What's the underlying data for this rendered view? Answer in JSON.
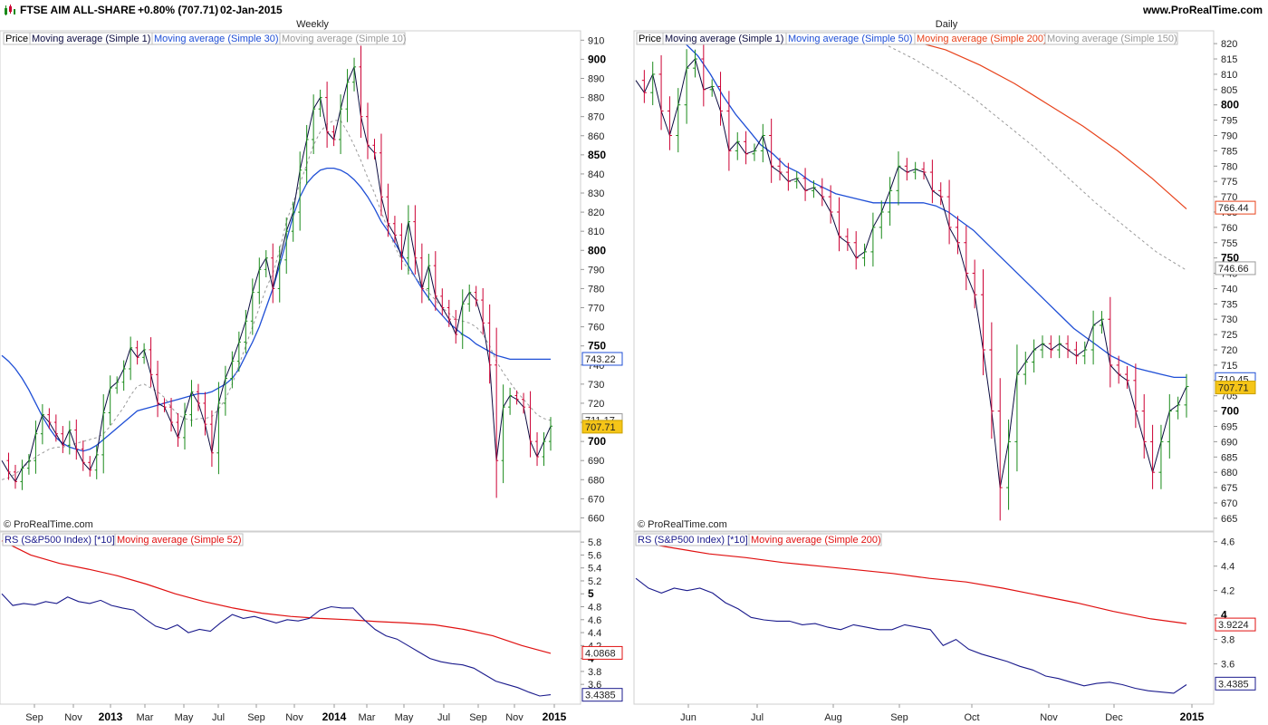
{
  "header": {
    "instrument": "FTSE AIM ALL-SHARE",
    "change": "+0.80% (707.71)",
    "date": "02-Jan-2015",
    "site": "www.ProRealTime.com"
  },
  "colors": {
    "up": "#1a8a1a",
    "down": "#cc0033",
    "close_line": "#0b0b40",
    "ma_blue": "#1f4fd6",
    "ma_gray": "#9a9a9a",
    "ma_red": "#e8431c",
    "rs_blue": "#1a1a8c",
    "rs_red": "#e01010",
    "price_tag": "#f5c518"
  },
  "chart_data": [
    {
      "id": "weekly_price",
      "type": "line",
      "title": "Weekly",
      "copyright": "© ProRealTime.com",
      "legend": [
        "Price",
        "Moving average (Simple 1)",
        "Moving average (Simple 30)",
        "Moving average (Simple 10)"
      ],
      "ylim": [
        655,
        913
      ],
      "y_ticks": [
        660,
        670,
        680,
        690,
        700,
        710,
        720,
        730,
        740,
        750,
        760,
        770,
        780,
        790,
        800,
        810,
        820,
        830,
        840,
        850,
        860,
        870,
        880,
        890,
        900,
        910
      ],
      "y_bold_ticks": [
        700,
        750,
        800,
        850,
        900
      ],
      "x_labels": [
        "Sep",
        "Nov",
        "2013",
        "Mar",
        "May",
        "Jul",
        "Sep",
        "Nov",
        "2014",
        "Mar",
        "May",
        "Jul",
        "Sep",
        "Nov",
        "2015"
      ],
      "x_bold_labels": [
        "2013",
        "2014",
        "2015"
      ],
      "close": [
        690,
        684,
        679,
        686,
        690,
        704,
        714,
        710,
        704,
        698,
        706,
        696,
        689,
        685,
        693,
        715,
        728,
        731,
        738,
        749,
        744,
        748,
        735,
        720,
        718,
        710,
        702,
        714,
        726,
        720,
        709,
        694,
        720,
        733,
        742,
        752,
        763,
        778,
        790,
        796,
        780,
        795,
        810,
        820,
        842,
        858,
        874,
        880,
        862,
        858,
        874,
        888,
        896,
        870,
        855,
        851,
        828,
        814,
        808,
        796,
        815,
        796,
        780,
        792,
        776,
        770,
        764,
        756,
        772,
        778,
        774,
        762,
        740,
        690,
        718,
        724,
        722,
        718,
        700,
        692,
        700,
        708
      ],
      "series": [
        {
          "name": "Moving average (Simple 30)",
          "values": [
            745,
            742,
            738,
            733,
            727,
            720,
            713,
            707,
            702,
            699,
            697,
            696,
            695,
            696,
            698,
            701,
            704,
            707,
            710,
            713,
            716,
            717,
            718,
            719,
            720,
            721,
            722,
            723,
            724,
            725,
            725,
            726,
            728,
            730,
            733,
            738,
            745,
            752,
            760,
            770,
            780,
            792,
            805,
            818,
            828,
            835,
            839,
            842,
            843,
            843,
            842,
            840,
            837,
            833,
            828,
            822,
            815,
            810,
            804,
            798,
            792,
            786,
            780,
            775,
            770,
            766,
            762,
            759,
            756,
            754,
            751,
            749,
            747,
            745,
            744,
            743,
            743,
            743,
            743,
            743,
            743,
            743
          ]
        },
        {
          "name": "Moving average (Simple 10)",
          "values": [
            680,
            681,
            683,
            686,
            689,
            692,
            694,
            696,
            697,
            697,
            698,
            699,
            700,
            701,
            702,
            704,
            708,
            713,
            718,
            724,
            729,
            730,
            728,
            726,
            723,
            718,
            714,
            712,
            711,
            712,
            712,
            713,
            717,
            722,
            730,
            740,
            750,
            760,
            770,
            780,
            788,
            800,
            815,
            825,
            835,
            845,
            855,
            862,
            866,
            868,
            868,
            862,
            855,
            847,
            838,
            830,
            820,
            811,
            802,
            795,
            790,
            786,
            782,
            778,
            774,
            770,
            767,
            764,
            763,
            762,
            760,
            756,
            750,
            742,
            736,
            731,
            726,
            722,
            718,
            714,
            712,
            711
          ]
        }
      ]
    },
    {
      "id": "daily_price",
      "type": "line",
      "title": "Daily",
      "copyright": "© ProRealTime.com",
      "legend": [
        "Price",
        "Moving average (Simple 1)",
        "Moving average (Simple 50)",
        "Moving average (Simple 200)",
        "Moving average (Simple 150)"
      ],
      "ylim": [
        662,
        823
      ],
      "y_ticks": [
        665,
        670,
        675,
        680,
        685,
        690,
        695,
        700,
        705,
        710,
        715,
        720,
        725,
        730,
        735,
        740,
        745,
        750,
        755,
        760,
        765,
        770,
        775,
        780,
        785,
        790,
        795,
        800,
        805,
        810,
        815,
        820
      ],
      "y_bold_ticks": [
        700,
        750,
        800
      ],
      "x_labels": [
        "Jun",
        "Jul",
        "Aug",
        "Sep",
        "Oct",
        "Nov",
        "Dec",
        "2015"
      ],
      "x_bold_labels": [
        "2015"
      ],
      "close": [
        808,
        804,
        810,
        798,
        790,
        800,
        812,
        815,
        805,
        806,
        798,
        785,
        788,
        784,
        785,
        790,
        780,
        778,
        775,
        776,
        772,
        773,
        770,
        765,
        757,
        755,
        750,
        752,
        760,
        765,
        772,
        780,
        778,
        779,
        778,
        772,
        770,
        760,
        755,
        745,
        738,
        720,
        700,
        675,
        690,
        712,
        716,
        720,
        722,
        720,
        722,
        720,
        718,
        720,
        728,
        730,
        715,
        712,
        710,
        700,
        690,
        680,
        690,
        700,
        702,
        708
      ],
      "series": [
        {
          "name": "Moving average (Simple 50)",
          "values": [
            820,
            816,
            810,
            803,
            797,
            792,
            787,
            784,
            780,
            778,
            775,
            773,
            771,
            770,
            769,
            768,
            768,
            768,
            768,
            768,
            767,
            765,
            762,
            759,
            755,
            751,
            747,
            743,
            739,
            735,
            731,
            727,
            724,
            721,
            718,
            716,
            714,
            713,
            712,
            711,
            711
          ]
        },
        {
          "name": "Moving average (Simple 200)",
          "values": [
            821,
            818,
            813,
            807,
            800,
            793,
            785,
            776,
            766
          ]
        },
        {
          "name": "Moving average (Simple 150)",
          "values": [
            820,
            815,
            809,
            802,
            794,
            786,
            777,
            768,
            760,
            752,
            746
          ]
        }
      ],
      "tags": [
        "710.45",
        "707.71",
        "766.44",
        "746.66"
      ]
    },
    {
      "id": "weekly_rs",
      "type": "line",
      "legend": [
        "RS (S&P500 Index) [*10]",
        "Moving average (Simple 52)"
      ],
      "ylim": [
        3.35,
        5.9
      ],
      "y_ticks": [
        3.6,
        3.8,
        4,
        4.2,
        4.4,
        4.6,
        4.8,
        5,
        5.2,
        5.4,
        5.6,
        5.8
      ],
      "y_bold_ticks": [
        4,
        5
      ],
      "series": [
        {
          "name": "RS (S&P500 Index) [*10]",
          "values": [
            5.0,
            4.82,
            4.85,
            4.83,
            4.88,
            4.85,
            4.95,
            4.88,
            4.85,
            4.9,
            4.82,
            4.78,
            4.75,
            4.62,
            4.5,
            4.45,
            4.52,
            4.4,
            4.45,
            4.42,
            4.56,
            4.68,
            4.62,
            4.65,
            4.6,
            4.55,
            4.6,
            4.58,
            4.62,
            4.75,
            4.8,
            4.78,
            4.78,
            4.6,
            4.45,
            4.35,
            4.3,
            4.2,
            4.1,
            4.0,
            3.95,
            3.92,
            3.9,
            3.85,
            3.75,
            3.65,
            3.6,
            3.55,
            3.48,
            3.42,
            3.44
          ]
        },
        {
          "name": "Moving average (Simple 52)",
          "values": [
            5.82,
            5.6,
            5.47,
            5.38,
            5.28,
            5.15,
            5.0,
            4.88,
            4.78,
            4.7,
            4.65,
            4.62,
            4.6,
            4.57,
            4.55,
            4.52,
            4.45,
            4.35,
            4.2,
            4.08
          ]
        }
      ],
      "tags": [
        "4.0868",
        "3.4385"
      ]
    },
    {
      "id": "daily_rs",
      "type": "line",
      "legend": [
        "RS (S&P500 Index) [*10]",
        "Moving average (Simple 200)"
      ],
      "ylim": [
        3.3,
        4.65
      ],
      "y_ticks": [
        3.6,
        3.8,
        4,
        4.2,
        4.4,
        4.6
      ],
      "y_bold_ticks": [
        4
      ],
      "series": [
        {
          "name": "RS (S&P500 Index) [*10]",
          "values": [
            4.3,
            4.22,
            4.18,
            4.22,
            4.2,
            4.22,
            4.18,
            4.1,
            4.05,
            3.98,
            3.96,
            3.95,
            3.95,
            3.92,
            3.93,
            3.9,
            3.88,
            3.92,
            3.9,
            3.88,
            3.88,
            3.92,
            3.9,
            3.88,
            3.75,
            3.8,
            3.72,
            3.68,
            3.65,
            3.62,
            3.58,
            3.55,
            3.5,
            3.48,
            3.45,
            3.42,
            3.44,
            3.45,
            3.43,
            3.4,
            3.38,
            3.37,
            3.36,
            3.43
          ]
        },
        {
          "name": "Moving average (Simple 200)",
          "values": [
            4.6,
            4.55,
            4.5,
            4.47,
            4.43,
            4.4,
            4.37,
            4.34,
            4.3,
            4.27,
            4.22,
            4.16,
            4.1,
            4.03,
            3.97,
            3.93
          ]
        }
      ],
      "tags": [
        "3.9224",
        "3.4385"
      ]
    }
  ]
}
